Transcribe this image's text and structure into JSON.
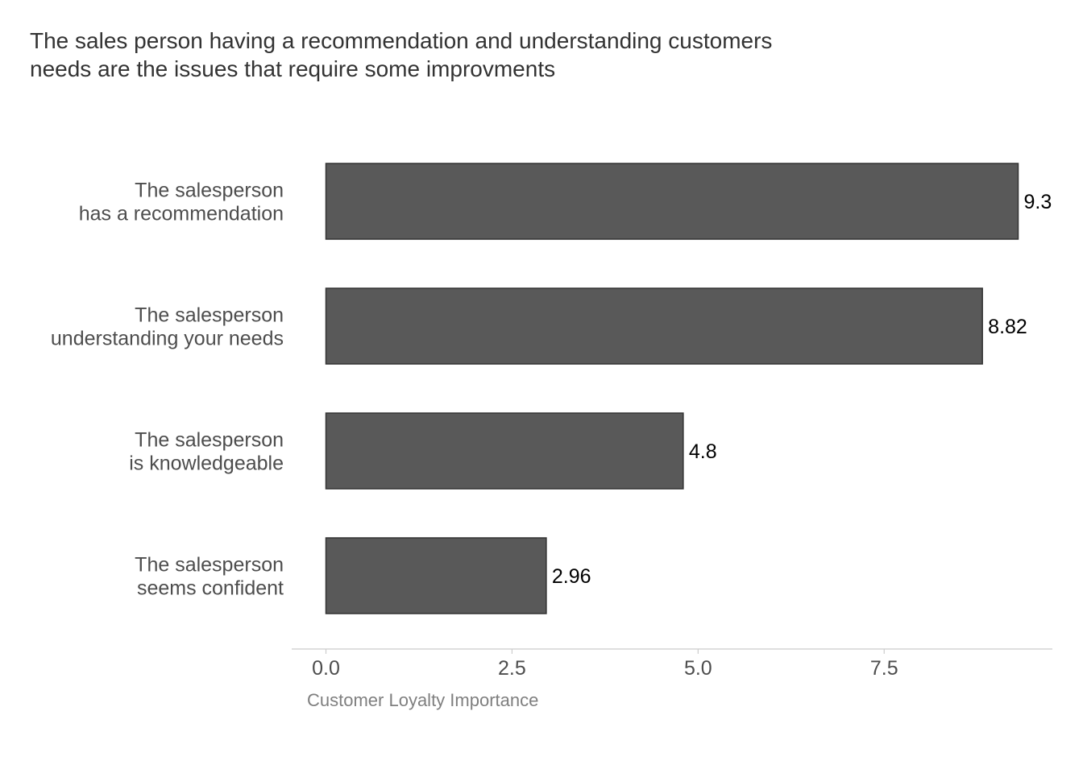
{
  "chart_data": {
    "type": "bar",
    "orientation": "horizontal",
    "title_lines": [
      "The sales person having a recommendation and understanding customers",
      "needs are the issues that require some improvments"
    ],
    "categories": [
      [
        "The salesperson",
        "has a recommendation"
      ],
      [
        "The salesperson",
        "understanding your needs"
      ],
      [
        "The salesperson",
        "is knowledgeable"
      ],
      [
        "The salesperson",
        "seems confident"
      ]
    ],
    "values": [
      9.3,
      8.82,
      4.8,
      2.96
    ],
    "value_labels": [
      "9.3",
      "8.82",
      "4.8",
      "2.96"
    ],
    "xlabel": "Customer Loyalty Importance",
    "ylabel": "",
    "x_ticks": [
      0,
      2.5,
      5,
      7.5
    ],
    "x_tick_labels": [
      "0.0",
      "2.5",
      "5.0",
      "7.5"
    ],
    "xlim": [
      -0.46,
      9.76
    ],
    "grid": false,
    "legend": "none",
    "bar_color": "#595959",
    "bar_outline_color": "#333333",
    "axis_line_color": "#cccccc"
  }
}
